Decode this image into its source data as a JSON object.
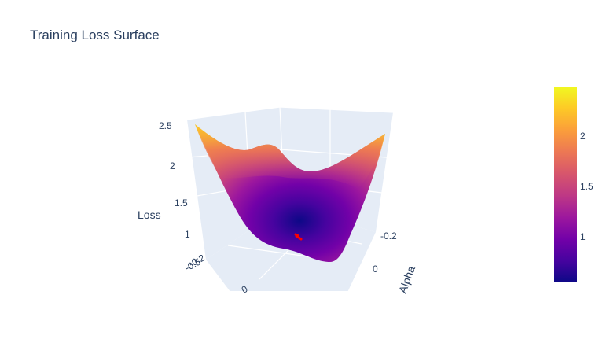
{
  "chart_data": {
    "type": "surface",
    "title": "Training Loss Surface",
    "scene": {
      "zaxis": {
        "title": "Loss",
        "ticks": [
          "1",
          "1.5",
          "2",
          "2.5"
        ]
      },
      "yaxis": {
        "title": "Alpha",
        "ticks": [
          "-0.2",
          "0"
        ]
      },
      "xaxis": {
        "title": "",
        "ticks": [
          "-0.5",
          "-0.2",
          "0"
        ]
      }
    },
    "z_range": [
      0.55,
      2.55
    ],
    "colorbar": {
      "ticks": [
        "1",
        "1.5",
        "2"
      ],
      "range": [
        0.55,
        2.5
      ],
      "colorscale": [
        "#0d0887",
        "#46039f",
        "#7201a8",
        "#9c179e",
        "#bd3786",
        "#d8576b",
        "#ed7953",
        "#fb9f3a",
        "#fdca26",
        "#f0f921"
      ]
    },
    "trajectory_color": "#ff0000",
    "background": "#e5ecf6",
    "grid_color": "#ffffff"
  }
}
